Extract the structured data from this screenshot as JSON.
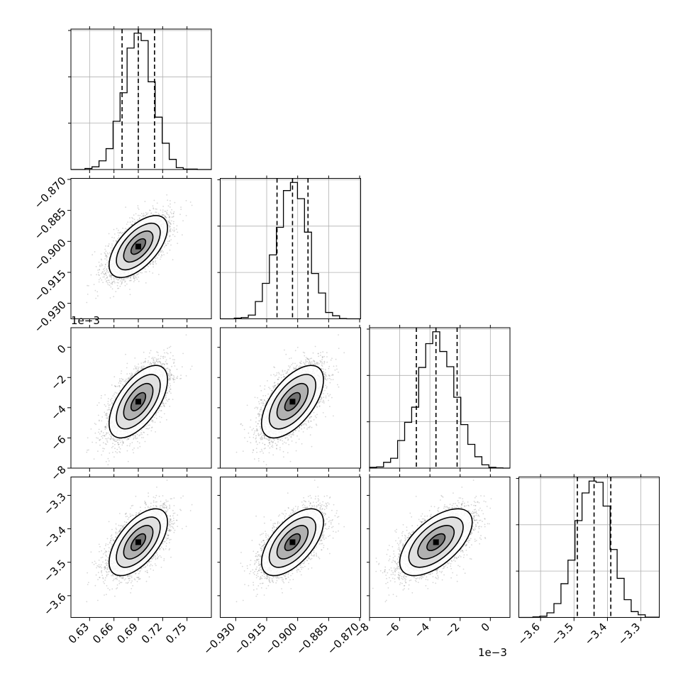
{
  "chart_data": {
    "type": "corner",
    "parameters": [
      {
        "range": [
          0.607,
          0.78
        ],
        "ticks": [
          "0.63",
          "0.66",
          "0.69",
          "0.72",
          "0.75"
        ],
        "tick_values": [
          0.63,
          0.66,
          0.69,
          0.72,
          0.75
        ],
        "offset_text": "",
        "mean": 0.69,
        "std": 0.018,
        "quantiles": [
          0.67,
          0.69,
          0.71
        ]
      },
      {
        "range": [
          -0.9375,
          -0.8695
        ],
        "ticks": [
          "−0.930",
          "−0.915",
          "−0.900",
          "−0.885",
          "−0.870"
        ],
        "tick_values": [
          -0.93,
          -0.915,
          -0.9,
          -0.885,
          -0.87
        ],
        "offset_text": "",
        "mean": -0.9025,
        "std": 0.0075,
        "quantiles": [
          -0.91,
          -0.9025,
          -0.895
        ]
      },
      {
        "range": [
          -8.0,
          1.3
        ],
        "ticks": [
          "−8",
          "−6",
          "−4",
          "−2",
          "0"
        ],
        "tick_values": [
          -8,
          -6,
          -4,
          -2,
          0
        ],
        "offset_text": "1e−3",
        "mean": -3.6,
        "std": 1.2,
        "quantiles": [
          -4.9,
          -3.6,
          -2.2
        ]
      },
      {
        "range": [
          -3.665,
          -3.245
        ],
        "ticks": [
          "−3.6",
          "−3.5",
          "−3.4",
          "−3.3"
        ],
        "tick_values": [
          -3.6,
          -3.5,
          -3.4,
          -3.3
        ],
        "offset_text": "",
        "mean": -3.44,
        "std": 0.05,
        "quantiles": [
          -3.49,
          -3.44,
          -3.39
        ]
      }
    ],
    "correlation": 0.6,
    "histogram_bins": 20,
    "contour_levels": [
      "0.5σ",
      "1σ",
      "1.5σ",
      "2σ"
    ],
    "grid": true,
    "colors": {
      "line": "#000000",
      "points": "#8c8c8c",
      "grid": "#b0b0b0"
    }
  }
}
